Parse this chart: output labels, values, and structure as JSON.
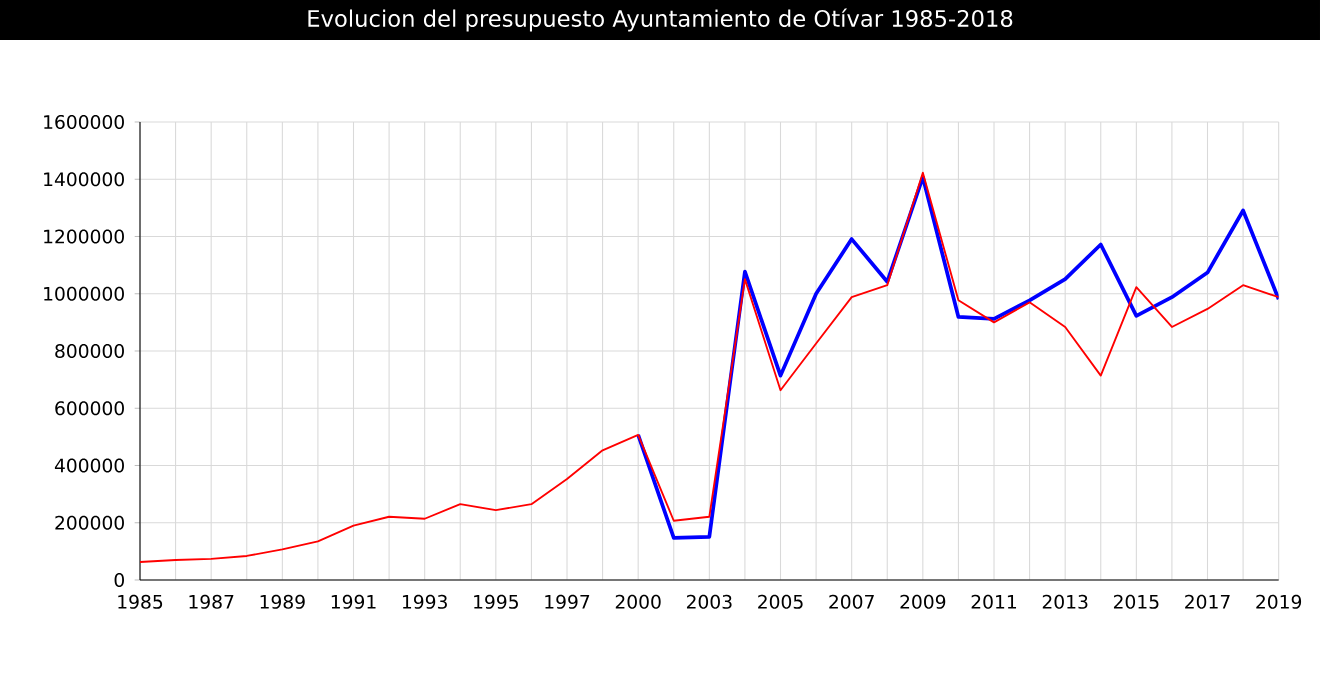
{
  "chart_data": {
    "type": "line",
    "title": "Evolucion del presupuesto Ayuntamiento de Otívar 1985-2018",
    "categories": [
      "1985",
      null,
      "1987",
      null,
      "1989",
      null,
      "1991",
      null,
      "1993",
      null,
      "1995",
      null,
      "1997",
      null,
      "2000",
      null,
      "2003",
      null,
      "2005",
      null,
      "2007",
      null,
      "2009",
      null,
      "2011",
      null,
      "2013",
      null,
      "2015",
      null,
      "2017",
      null,
      "2019"
    ],
    "series": [
      {
        "color": "#0000ff",
        "values": [
          null,
          null,
          null,
          null,
          null,
          null,
          null,
          null,
          null,
          null,
          null,
          null,
          null,
          null,
          507000,
          147000,
          151000,
          1077000,
          714000,
          1000000,
          1191000,
          1042000,
          1407000,
          919000,
          912000,
          977000,
          1051000,
          1172000,
          923000,
          988000,
          1074000,
          1291000,
          981000
        ]
      },
      {
        "color": "#ff0000",
        "values": [
          63000,
          70000,
          74000,
          84000,
          107000,
          135000,
          190000,
          221000,
          214000,
          265000,
          244000,
          265000,
          353000,
          453000,
          507000,
          207000,
          221000,
          1051000,
          663000,
          826000,
          988000,
          1030000,
          1423000,
          977000,
          900000,
          970000,
          884000,
          714000,
          1023000,
          884000,
          947000,
          1030000,
          988000
        ]
      }
    ],
    "ylim": [
      0,
      1600000
    ],
    "yticks": [
      0,
      200000,
      400000,
      600000,
      800000,
      1000000,
      1200000,
      1400000,
      1600000
    ],
    "grid": true,
    "marker": "none",
    "line_style": "solid",
    "legend": false
  }
}
